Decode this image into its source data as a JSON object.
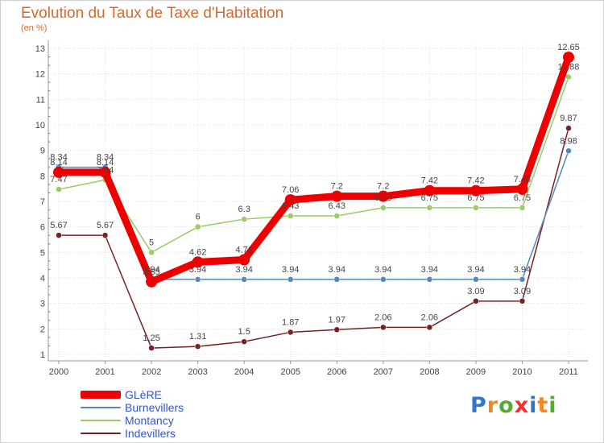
{
  "chart_data": {
    "type": "line",
    "title": "Evolution du Taux de Taxe d'Habitation",
    "subtitle": "(en %)",
    "xlabel": "",
    "ylabel": "",
    "categories": [
      "2000",
      "2001",
      "2002",
      "2003",
      "2004",
      "2005",
      "2006",
      "2007",
      "2008",
      "2009",
      "2010",
      "2011"
    ],
    "ylim": [
      1,
      13
    ],
    "yticks": [
      "1",
      "2",
      "3",
      "4",
      "5",
      "6",
      "7",
      "8",
      "9",
      "10",
      "11",
      "12",
      "13"
    ],
    "grid": "horizontal",
    "legend_position": "bottom-left",
    "series": [
      {
        "name": "GLèRE",
        "color": "#ee0000",
        "values": [
          8.14,
          8.14,
          3.85,
          4.62,
          4.71,
          7.06,
          7.2,
          7.2,
          7.42,
          7.42,
          7.48,
          12.65
        ],
        "labels": [
          "8.14",
          "8.14",
          "3.85",
          "4.62",
          "4.71",
          "7.06",
          "7.2",
          "7.2",
          "7.42",
          "7.42",
          "7.48",
          "12.65"
        ]
      },
      {
        "name": "Burnevillers",
        "color": "#5588bb",
        "values": [
          8.34,
          8.34,
          3.94,
          3.94,
          3.94,
          3.94,
          3.94,
          3.94,
          3.94,
          3.94,
          3.94,
          8.98
        ],
        "labels": [
          "8.34",
          "8.34",
          "3.94",
          "3.94",
          "3.94",
          "3.94",
          "3.94",
          "3.94",
          "3.94",
          "3.94",
          "3.94",
          "8.98"
        ]
      },
      {
        "name": "Montancy",
        "color": "#99cc66",
        "values": [
          7.47,
          7.84,
          5,
          6,
          6.3,
          6.43,
          6.43,
          6.75,
          6.75,
          6.75,
          6.75,
          11.88
        ],
        "labels": [
          "7.47",
          "7.84",
          "5",
          "6",
          "6.3",
          "6.43",
          "6.43",
          "6.75",
          "6.75",
          "6.75",
          "6.75",
          "11.88"
        ]
      },
      {
        "name": "Indevillers",
        "color": "#772222",
        "values": [
          5.67,
          5.67,
          1.25,
          1.31,
          1.5,
          1.87,
          1.97,
          2.06,
          2.06,
          3.09,
          3.09,
          9.87
        ],
        "labels": [
          "5.67",
          "5.67",
          "1.25",
          "1.31",
          "1.5",
          "1.87",
          "1.97",
          "2.06",
          "2.06",
          "3.09",
          "3.09",
          "9.87"
        ]
      }
    ]
  },
  "logo": {
    "letters": [
      "P",
      "r",
      "o",
      "x",
      "i",
      "t",
      "i"
    ],
    "colors": [
      "#3377cc",
      "#ee8822",
      "#55aa33",
      "#ee3333",
      "#3377cc",
      "#ee8822",
      "#55aa33"
    ]
  }
}
